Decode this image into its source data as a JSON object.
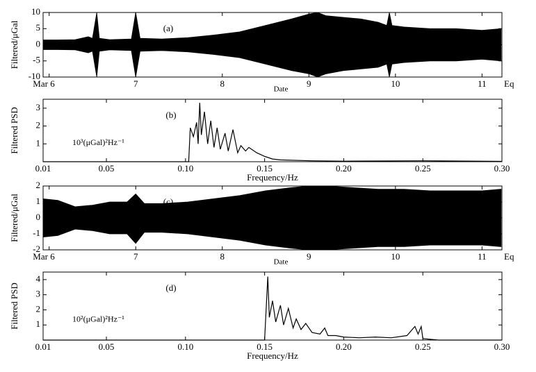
{
  "chart_data": [
    {
      "type": "area",
      "annotation": "(a)",
      "xlabel": "Date",
      "ylabel": "Filtered/μGal",
      "x": [
        5.93,
        6.1,
        6.3,
        6.45,
        6.5,
        6.55,
        6.58,
        6.7,
        6.95,
        7.0,
        7.05,
        7.3,
        7.6,
        7.9,
        8.2,
        8.5,
        8.8,
        9.0,
        9.1,
        9.2,
        9.4,
        9.6,
        9.8,
        9.9,
        9.93,
        9.96,
        10.1,
        10.4,
        10.7,
        11.0,
        11.22
      ],
      "series": [
        {
          "color": "#000000",
          "values": [
            1.5,
            1.5,
            1.6,
            2.5,
            2,
            10,
            2,
            1.6,
            1.8,
            10,
            2,
            1.8,
            2.2,
            3,
            4,
            6,
            8,
            9.5,
            10,
            9,
            8.5,
            8,
            7,
            6,
            10,
            6,
            5.5,
            5,
            5,
            4.5,
            5
          ]
        },
        {
          "color": "#000000",
          "values": [
            -1.5,
            -1.5,
            -1.6,
            -2.5,
            -2,
            -10,
            -2,
            -1.6,
            -1.8,
            -10,
            -2,
            -1.8,
            -2.2,
            -3,
            -4,
            -6,
            -8,
            -9,
            -10,
            -9,
            -8,
            -7.5,
            -7,
            -6,
            -10,
            -6,
            -5.5,
            -5,
            -5,
            -4.5,
            -5
          ]
        }
      ],
      "xlim": [
        5.93,
        11.23
      ],
      "xticks": [
        {
          "value": 6,
          "label": "Mar 6"
        },
        7,
        8,
        9,
        10,
        11,
        {
          "value": 11.23,
          "label": "Eq"
        }
      ],
      "ylim": [
        -10,
        10
      ],
      "yticks": [
        -10,
        -5,
        0,
        5,
        10
      ]
    },
    {
      "type": "line",
      "annotation": "(b)",
      "unit_label": "10³(μGal)²Hz⁻¹",
      "xlabel": "Frequency/Hz",
      "ylabel": "Filtered PSD",
      "x": [
        0.01,
        0.1,
        0.102,
        0.103,
        0.105,
        0.107,
        0.108,
        0.109,
        0.11,
        0.112,
        0.114,
        0.116,
        0.118,
        0.12,
        0.122,
        0.125,
        0.127,
        0.13,
        0.133,
        0.135,
        0.138,
        0.14,
        0.145,
        0.15,
        0.155,
        0.16,
        0.18,
        0.2,
        0.25,
        0.3
      ],
      "series": [
        {
          "color": "#000000",
          "values": [
            0,
            0,
            0,
            1.9,
            1.4,
            2.2,
            1.0,
            3.3,
            1.5,
            2.8,
            1.0,
            2.3,
            0.8,
            1.9,
            0.7,
            1.6,
            0.6,
            1.8,
            0.5,
            0.9,
            0.6,
            0.8,
            0.5,
            0.3,
            0.15,
            0.1,
            0.05,
            0.03,
            0.05,
            0.02
          ]
        }
      ],
      "xlim": [
        0.01,
        0.3
      ],
      "xticks": [
        0.01,
        0.05,
        {
          "value": 0.1,
          "label": "0.10"
        },
        0.15,
        {
          "value": 0.2,
          "label": "0.20"
        },
        0.25,
        {
          "value": 0.3,
          "label": "0.30"
        }
      ],
      "ylim": [
        0,
        3.5
      ],
      "yticks": [
        1,
        2,
        3
      ]
    },
    {
      "type": "area",
      "annotation": "(c)",
      "xlabel": "Date",
      "ylabel": "Filtered/μGal",
      "x": [
        5.93,
        6.1,
        6.3,
        6.5,
        6.7,
        6.9,
        7.0,
        7.1,
        7.3,
        7.6,
        7.9,
        8.2,
        8.5,
        8.8,
        9.0,
        9.2,
        9.5,
        9.8,
        10.1,
        10.4,
        10.7,
        11.0,
        11.22
      ],
      "series": [
        {
          "color": "#000000",
          "values": [
            1.2,
            1.1,
            0.7,
            0.8,
            1.0,
            1.0,
            1.5,
            0.9,
            0.9,
            1.0,
            1.2,
            1.4,
            1.7,
            1.9,
            2,
            2,
            1.9,
            1.8,
            1.8,
            1.7,
            1.7,
            1.7,
            1.8
          ]
        },
        {
          "color": "#000000",
          "values": [
            -1.2,
            -1.1,
            -0.7,
            -0.8,
            -1.0,
            -1.0,
            -1.6,
            -0.9,
            -0.9,
            -1.0,
            -1.2,
            -1.4,
            -1.7,
            -1.9,
            -2,
            -2,
            -1.9,
            -1.8,
            -1.8,
            -1.7,
            -1.7,
            -1.7,
            -1.8
          ]
        }
      ],
      "xlim": [
        5.93,
        11.23
      ],
      "xticks": [
        {
          "value": 6,
          "label": "Mar 6"
        },
        7,
        8,
        9,
        10,
        11,
        {
          "value": 11.23,
          "label": "Eq"
        }
      ],
      "ylim": [
        -2,
        2
      ],
      "yticks": [
        -2,
        -1,
        0,
        1,
        2
      ]
    },
    {
      "type": "line",
      "annotation": "(d)",
      "unit_label": "10²(μGal)²Hz⁻¹",
      "xlabel": "Frequency/Hz",
      "ylabel": "Filtered PSD",
      "x": [
        0.01,
        0.15,
        0.152,
        0.153,
        0.155,
        0.157,
        0.16,
        0.162,
        0.165,
        0.168,
        0.17,
        0.173,
        0.176,
        0.18,
        0.185,
        0.188,
        0.19,
        0.195,
        0.2,
        0.21,
        0.22,
        0.23,
        0.24,
        0.245,
        0.247,
        0.249,
        0.25,
        0.26,
        0.3
      ],
      "series": [
        {
          "color": "#000000",
          "values": [
            0,
            0,
            4.2,
            1.5,
            2.6,
            1.2,
            2.3,
            1.0,
            2.1,
            0.8,
            1.4,
            0.7,
            1.1,
            0.5,
            0.4,
            0.8,
            0.3,
            0.3,
            0.2,
            0.15,
            0.2,
            0.15,
            0.3,
            0.9,
            0.4,
            0.9,
            0.1,
            0,
            0
          ]
        }
      ],
      "xlim": [
        0.01,
        0.3
      ],
      "xticks": [
        0.01,
        0.05,
        {
          "value": 0.1,
          "label": "0.10"
        },
        0.15,
        {
          "value": 0.2,
          "label": "0.20"
        },
        0.25,
        {
          "value": 0.3,
          "label": "0.30"
        }
      ],
      "ylim": [
        0,
        4.5
      ],
      "yticks": [
        1,
        2,
        3,
        4
      ]
    }
  ]
}
